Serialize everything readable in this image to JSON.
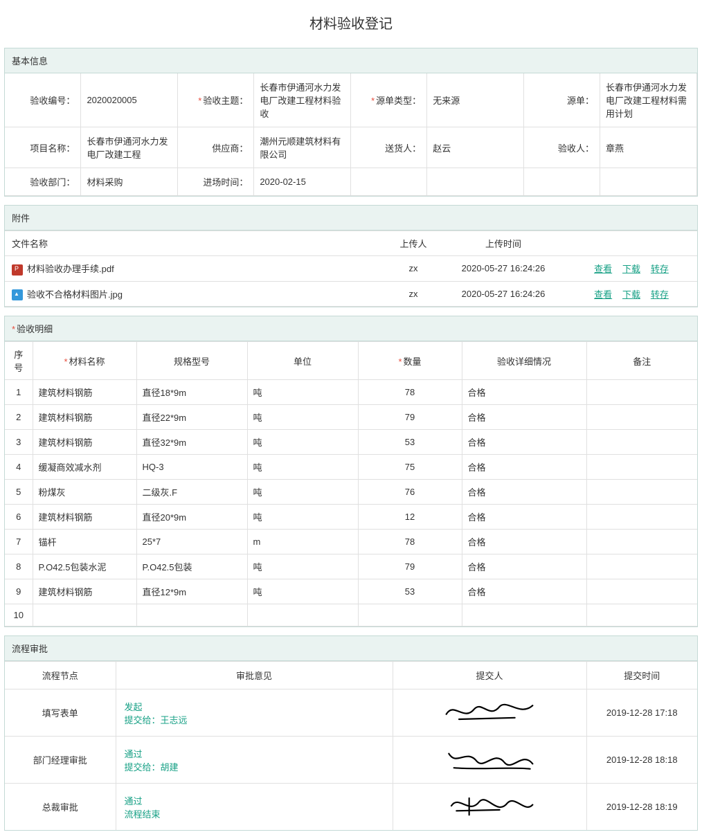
{
  "page": {
    "title": "材料验收登记"
  },
  "sections": {
    "basic": "基本信息",
    "attachments": "附件",
    "details": "验收明细",
    "approval": "流程审批"
  },
  "basic": {
    "labels": {
      "acceptNo": "验收编号：",
      "acceptSubject": "验收主题：",
      "sourceType": "源单类型：",
      "sourceOrder": "源单：",
      "projectName": "项目名称：",
      "supplier": "供应商：",
      "deliverer": "送货人：",
      "receiver": "验收人：",
      "department": "验收部门：",
      "entryTime": "进场时间："
    },
    "values": {
      "acceptNo": "2020020005",
      "acceptSubject": "长春市伊通河水力发电厂改建工程材料验收",
      "sourceType": "无来源",
      "sourceOrder": "长春市伊通河水力发电厂改建工程材料需用计划",
      "projectName": "长春市伊通河水力发电厂改建工程",
      "supplier": "潮州元顺建筑材料有限公司",
      "deliverer": "赵云",
      "receiver": "章燕",
      "department": "材料采购",
      "entryTime": "2020-02-15"
    }
  },
  "attachments": {
    "headers": {
      "fileName": "文件名称",
      "uploader": "上传人",
      "uploadTime": "上传时间"
    },
    "actions": {
      "view": "查看",
      "download": "下载",
      "save": "转存"
    },
    "rows": [
      {
        "icon": "pdf",
        "name": "材料验收办理手续.pdf",
        "uploader": "zx",
        "time": "2020-05-27 16:24:26"
      },
      {
        "icon": "img",
        "name": "验收不合格材料图片.jpg",
        "uploader": "zx",
        "time": "2020-05-27 16:24:26"
      }
    ]
  },
  "details": {
    "headers": {
      "seq": "序号",
      "material": "材料名称",
      "spec": "规格型号",
      "unit": "单位",
      "qty": "数量",
      "status": "验收详细情况",
      "remark": "备注"
    },
    "rows": [
      {
        "seq": "1",
        "material": "建筑材料钢筋",
        "spec": "直径18*9m",
        "unit": "吨",
        "qty": "78",
        "status": "合格",
        "remark": ""
      },
      {
        "seq": "2",
        "material": "建筑材料钢筋",
        "spec": "直径22*9m",
        "unit": "吨",
        "qty": "79",
        "status": "合格",
        "remark": ""
      },
      {
        "seq": "3",
        "material": "建筑材料钢筋",
        "spec": "直径32*9m",
        "unit": "吨",
        "qty": "53",
        "status": "合格",
        "remark": ""
      },
      {
        "seq": "4",
        "material": "缓凝商效减水剂",
        "spec": "HQ-3",
        "unit": "吨",
        "qty": "75",
        "status": "合格",
        "remark": ""
      },
      {
        "seq": "5",
        "material": "粉煤灰",
        "spec": "二级灰.F",
        "unit": "吨",
        "qty": "76",
        "status": "合格",
        "remark": ""
      },
      {
        "seq": "6",
        "material": "建筑材料钢筋",
        "spec": "直径20*9m",
        "unit": "吨",
        "qty": "12",
        "status": "合格",
        "remark": ""
      },
      {
        "seq": "7",
        "material": "锚杆",
        "spec": "25*7",
        "unit": "m",
        "qty": "78",
        "status": "合格",
        "remark": ""
      },
      {
        "seq": "8",
        "material": "P.O42.5包装水泥",
        "spec": "P.O42.5包装",
        "unit": "吨",
        "qty": "79",
        "status": "合格",
        "remark": ""
      },
      {
        "seq": "9",
        "material": "建筑材料钢筋",
        "spec": "直径12*9m",
        "unit": "吨",
        "qty": "53",
        "status": "合格",
        "remark": ""
      },
      {
        "seq": "10",
        "material": "",
        "spec": "",
        "unit": "",
        "qty": "",
        "status": "",
        "remark": ""
      }
    ]
  },
  "approval": {
    "headers": {
      "node": "流程节点",
      "opinion": "审批意见",
      "submitter": "提交人",
      "time": "提交时间"
    },
    "labels": {
      "submitTo": "提交给：",
      "flowEnd": "流程结束"
    },
    "rows": [
      {
        "node": "填写表单",
        "action": "发起",
        "to": "王志远",
        "time": "2019-12-28 17:18",
        "sig": "sig1"
      },
      {
        "node": "部门经理审批",
        "action": "通过",
        "to": "胡建",
        "time": "2019-12-28 18:18",
        "sig": "sig2"
      },
      {
        "node": "总裁审批",
        "action": "通过",
        "to": "",
        "time": "2019-12-28 18:19",
        "sig": "sig3"
      }
    ]
  }
}
